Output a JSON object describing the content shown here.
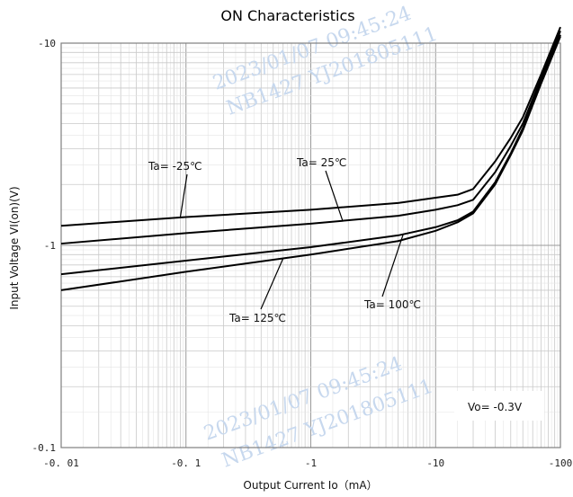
{
  "chart_data": {
    "type": "line",
    "title": "ON Characteristics",
    "xlabel": "Output Current   Io（mA）",
    "ylabel": "Input Voltage   VI(on)(V)",
    "xscale": "log",
    "yscale": "log",
    "xlim": [
      0.01,
      100
    ],
    "ylim": [
      -0.1,
      -10
    ],
    "x_tick_labels": [
      "-0. 01",
      "-0. 1",
      "-1",
      "-10",
      "-100"
    ],
    "y_tick_labels": [
      "-10",
      "-1",
      "-0.1"
    ],
    "grid": true,
    "series": [
      {
        "name": "Ta= -25℃",
        "x": [
          0.01,
          0.1,
          1,
          5,
          10,
          15,
          20,
          30,
          40,
          50,
          70,
          100
        ],
        "y": [
          -1.25,
          -1.38,
          -1.5,
          -1.62,
          -1.72,
          -1.78,
          -1.9,
          -2.6,
          -3.4,
          -4.3,
          -7.0,
          -12.0
        ]
      },
      {
        "name": "Ta= 25℃",
        "x": [
          0.01,
          0.1,
          1,
          5,
          10,
          15,
          20,
          30,
          40,
          50,
          70,
          100
        ],
        "y": [
          -1.02,
          -1.15,
          -1.28,
          -1.4,
          -1.5,
          -1.58,
          -1.68,
          -2.3,
          -3.1,
          -4.0,
          -6.7,
          -11.5
        ]
      },
      {
        "name": "Ta= 100℃",
        "x": [
          0.01,
          0.1,
          1,
          5,
          10,
          15,
          20,
          30,
          40,
          50,
          70,
          100
        ],
        "y": [
          -0.72,
          -0.84,
          -0.98,
          -1.12,
          -1.23,
          -1.33,
          -1.47,
          -2.05,
          -2.85,
          -3.8,
          -6.4,
          -11.0
        ]
      },
      {
        "name": "Ta= 125℃",
        "x": [
          0.01,
          0.1,
          1,
          5,
          10,
          15,
          20,
          30,
          40,
          50,
          70,
          100
        ],
        "y": [
          -0.6,
          -0.74,
          -0.9,
          -1.05,
          -1.18,
          -1.3,
          -1.44,
          -2.0,
          -2.8,
          -3.7,
          -6.3,
          -10.8
        ]
      }
    ],
    "annotations": [
      {
        "text": "Ta= -25℃",
        "series": 0
      },
      {
        "text": "Ta= 25℃",
        "series": 1
      },
      {
        "text": "Ta= 100℃",
        "series": 2
      },
      {
        "text": "Ta= 125℃",
        "series": 3
      },
      {
        "text": "Vo= -0.3V"
      }
    ]
  },
  "watermark": {
    "date": "2023/01/07 09:45:24",
    "code": "NB1427  YJ201805111"
  }
}
